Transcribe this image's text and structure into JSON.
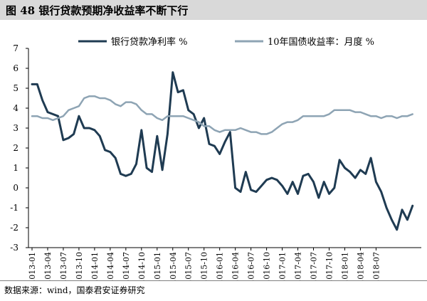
{
  "header": {
    "title": "图 48 银行贷款预期净收益率不断下行"
  },
  "footer": {
    "source": "数据来源：wind，国泰君安证券研究"
  },
  "chart_data": {
    "type": "line",
    "title": "",
    "ylim": [
      -3,
      7
    ],
    "yticks": [
      -3,
      -2,
      -1,
      0,
      1,
      2,
      3,
      4,
      5,
      6,
      7
    ],
    "grid": false,
    "legend_position": "top",
    "x_start": "2013-01",
    "x_end": "2018-09",
    "xtick_labels": [
      "2013-01",
      "2013-04",
      "2013-07",
      "2013-10",
      "2014-01",
      "2014-04",
      "2014-07",
      "2014-10",
      "2015-01",
      "2015-04",
      "2015-07",
      "2015-10",
      "2016-01",
      "2016-04",
      "2016-07",
      "2016-10",
      "2017-01",
      "2017-04",
      "2017-07",
      "2017-10",
      "2018-01",
      "2018-04",
      "2018-07"
    ],
    "series": [
      {
        "name": "银行贷款净利率 %",
        "color": "#1f3b52",
        "points": [
          [
            "2013-01",
            5.2
          ],
          [
            "2013-02",
            5.2
          ],
          [
            "2013-03",
            4.4
          ],
          [
            "2013-04",
            3.8
          ],
          [
            "2013-05",
            3.7
          ],
          [
            "2013-06",
            3.6
          ],
          [
            "2013-07",
            2.4
          ],
          [
            "2013-08",
            2.5
          ],
          [
            "2013-09",
            2.7
          ],
          [
            "2013-10",
            3.6
          ],
          [
            "2013-11",
            3.0
          ],
          [
            "2013-12",
            3.0
          ],
          [
            "2014-01",
            2.9
          ],
          [
            "2014-02",
            2.6
          ],
          [
            "2014-03",
            1.9
          ],
          [
            "2014-04",
            1.8
          ],
          [
            "2014-05",
            1.5
          ],
          [
            "2014-06",
            0.7
          ],
          [
            "2014-07",
            0.6
          ],
          [
            "2014-08",
            0.7
          ],
          [
            "2014-09",
            1.2
          ],
          [
            "2014-10",
            2.9
          ],
          [
            "2014-11",
            1.0
          ],
          [
            "2014-12",
            0.8
          ],
          [
            "2015-01",
            2.6
          ],
          [
            "2015-02",
            0.9
          ],
          [
            "2015-03",
            2.7
          ],
          [
            "2015-04",
            5.8
          ],
          [
            "2015-05",
            4.8
          ],
          [
            "2015-06",
            4.9
          ],
          [
            "2015-07",
            3.9
          ],
          [
            "2015-08",
            3.7
          ],
          [
            "2015-09",
            3.0
          ],
          [
            "2015-10",
            3.5
          ],
          [
            "2015-11",
            2.2
          ],
          [
            "2015-12",
            2.1
          ],
          [
            "2016-01",
            1.7
          ],
          [
            "2016-02",
            2.3
          ],
          [
            "2016-03",
            2.8
          ],
          [
            "2016-04",
            0.0
          ],
          [
            "2016-05",
            -0.2
          ],
          [
            "2016-06",
            0.8
          ],
          [
            "2016-07",
            -0.1
          ],
          [
            "2016-08",
            -0.2
          ],
          [
            "2016-09",
            0.1
          ],
          [
            "2016-10",
            0.4
          ],
          [
            "2016-11",
            0.5
          ],
          [
            "2016-12",
            0.4
          ],
          [
            "2017-01",
            0.1
          ],
          [
            "2017-02",
            -0.3
          ],
          [
            "2017-03",
            0.3
          ],
          [
            "2017-04",
            -0.3
          ],
          [
            "2017-05",
            0.6
          ],
          [
            "2017-06",
            0.7
          ],
          [
            "2017-07",
            0.3
          ],
          [
            "2017-08",
            -0.5
          ],
          [
            "2017-09",
            0.3
          ],
          [
            "2017-10",
            -0.3
          ],
          [
            "2017-11",
            0.0
          ],
          [
            "2017-12",
            1.4
          ],
          [
            "2018-01",
            1.0
          ],
          [
            "2018-02",
            0.8
          ],
          [
            "2018-03",
            0.5
          ],
          [
            "2018-04",
            0.9
          ],
          [
            "2018-05",
            0.7
          ],
          [
            "2018-06",
            1.5
          ],
          [
            "2018-07",
            0.3
          ],
          [
            "2018-08",
            -0.2
          ],
          [
            "2018-09",
            -1.0
          ],
          [
            "2018-10",
            -1.6
          ],
          [
            "2018-11",
            -2.1
          ],
          [
            "2018-12",
            -1.1
          ],
          [
            "2019-01",
            -1.6
          ],
          [
            "2019-02",
            -0.9
          ]
        ]
      },
      {
        "name": "10年国债收益率：月度 %",
        "color": "#8ea4b4",
        "points": [
          [
            "2013-01",
            3.6
          ],
          [
            "2013-02",
            3.6
          ],
          [
            "2013-03",
            3.5
          ],
          [
            "2013-04",
            3.5
          ],
          [
            "2013-05",
            3.4
          ],
          [
            "2013-06",
            3.5
          ],
          [
            "2013-07",
            3.6
          ],
          [
            "2013-08",
            3.9
          ],
          [
            "2013-09",
            4.0
          ],
          [
            "2013-10",
            4.1
          ],
          [
            "2013-11",
            4.5
          ],
          [
            "2013-12",
            4.6
          ],
          [
            "2014-01",
            4.6
          ],
          [
            "2014-02",
            4.5
          ],
          [
            "2014-03",
            4.5
          ],
          [
            "2014-04",
            4.4
          ],
          [
            "2014-05",
            4.2
          ],
          [
            "2014-06",
            4.1
          ],
          [
            "2014-07",
            4.3
          ],
          [
            "2014-08",
            4.3
          ],
          [
            "2014-09",
            4.2
          ],
          [
            "2014-10",
            3.9
          ],
          [
            "2014-11",
            3.7
          ],
          [
            "2014-12",
            3.7
          ],
          [
            "2015-01",
            3.5
          ],
          [
            "2015-02",
            3.4
          ],
          [
            "2015-03",
            3.6
          ],
          [
            "2015-04",
            3.6
          ],
          [
            "2015-05",
            3.6
          ],
          [
            "2015-06",
            3.6
          ],
          [
            "2015-07",
            3.5
          ],
          [
            "2015-08",
            3.4
          ],
          [
            "2015-09",
            3.3
          ],
          [
            "2015-10",
            3.1
          ],
          [
            "2015-11",
            3.1
          ],
          [
            "2015-12",
            2.9
          ],
          [
            "2016-01",
            2.8
          ],
          [
            "2016-02",
            2.9
          ],
          [
            "2016-03",
            2.9
          ],
          [
            "2016-04",
            2.9
          ],
          [
            "2016-05",
            3.0
          ],
          [
            "2016-06",
            2.9
          ],
          [
            "2016-07",
            2.8
          ],
          [
            "2016-08",
            2.8
          ],
          [
            "2016-09",
            2.7
          ],
          [
            "2016-10",
            2.7
          ],
          [
            "2016-11",
            2.8
          ],
          [
            "2016-12",
            3.0
          ],
          [
            "2017-01",
            3.2
          ],
          [
            "2017-02",
            3.3
          ],
          [
            "2017-03",
            3.3
          ],
          [
            "2017-04",
            3.4
          ],
          [
            "2017-05",
            3.6
          ],
          [
            "2017-06",
            3.6
          ],
          [
            "2017-07",
            3.6
          ],
          [
            "2017-08",
            3.6
          ],
          [
            "2017-09",
            3.6
          ],
          [
            "2017-10",
            3.7
          ],
          [
            "2017-11",
            3.9
          ],
          [
            "2017-12",
            3.9
          ],
          [
            "2018-01",
            3.9
          ],
          [
            "2018-02",
            3.9
          ],
          [
            "2018-03",
            3.8
          ],
          [
            "2018-04",
            3.8
          ],
          [
            "2018-05",
            3.7
          ],
          [
            "2018-06",
            3.6
          ],
          [
            "2018-07",
            3.6
          ],
          [
            "2018-08",
            3.5
          ],
          [
            "2018-09",
            3.6
          ],
          [
            "2018-10",
            3.6
          ],
          [
            "2018-11",
            3.5
          ],
          [
            "2018-12",
            3.6
          ],
          [
            "2019-01",
            3.6
          ],
          [
            "2019-02",
            3.7
          ]
        ]
      }
    ]
  }
}
